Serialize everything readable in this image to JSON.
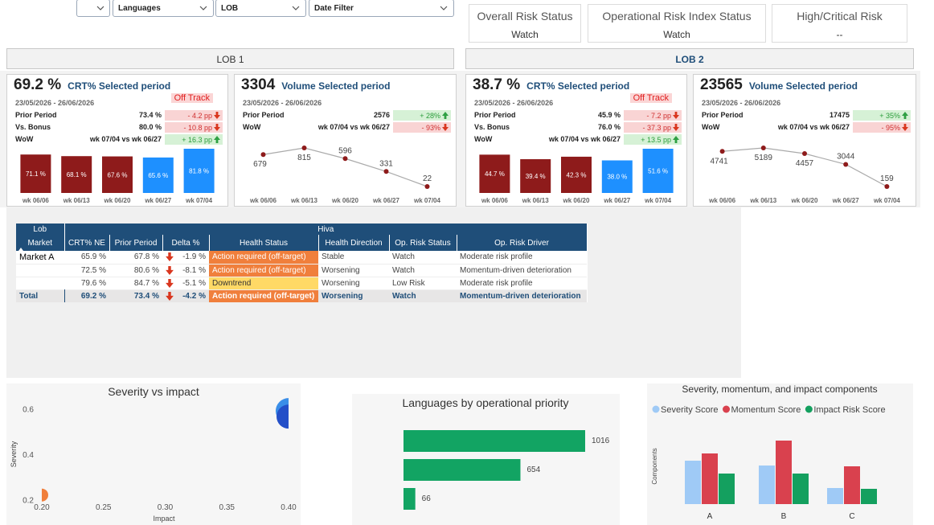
{
  "filters": [
    "Languages",
    "LOB",
    "Date Filter"
  ],
  "status_cards": [
    {
      "title": "Overall Risk Status",
      "value": "Watch"
    },
    {
      "title": "Operational Risk Index Status",
      "value": "Watch"
    },
    {
      "title": "High/Critical Risk",
      "value": "--"
    }
  ],
  "lob_headers": [
    "LOB 1",
    "LOB 2"
  ],
  "kpi_cards": [
    {
      "value": "69.2 %",
      "label": "CRT% Selected period",
      "date_range": "23/05/2026 - 26/06/2026",
      "status": "Off Track",
      "rows": [
        {
          "label": "Prior Period",
          "value": "73.4 %",
          "delta": "- 4.2 pp",
          "trend": "down"
        },
        {
          "label": "Vs. Bonus",
          "value": "80.0 %",
          "delta": "- 10.8 pp",
          "trend": "down"
        },
        {
          "label": "WoW",
          "value": "wk 07/04 vs wk 06/27",
          "delta": "+ 16.3 pp",
          "trend": "up"
        }
      ]
    },
    {
      "value": "3304",
      "label": "Volume Selected period",
      "date_range": "23/05/2026 - 26/06/2026",
      "rows": [
        {
          "label": "Prior Period",
          "value": "2576",
          "delta": "+ 28%",
          "trend": "up"
        },
        {
          "label": "WoW",
          "value": "wk 07/04 vs wk 06/27",
          "delta": "- 93%",
          "trend": "down"
        }
      ]
    },
    {
      "value": "38.7 %",
      "label": "CRT% Selected period",
      "date_range": "23/05/2026 - 26/06/2026",
      "status": "Off Track",
      "rows": [
        {
          "label": "Prior Period",
          "value": "45.9 %",
          "delta": "- 7.2 pp",
          "trend": "down"
        },
        {
          "label": "Vs. Bonus",
          "value": "76.0 %",
          "delta": "- 37.3 pp",
          "trend": "down"
        },
        {
          "label": "WoW",
          "value": "wk 07/04 vs wk 06/27",
          "delta": "+ 13.5 pp",
          "trend": "up"
        }
      ]
    },
    {
      "value": "23565",
      "label": "Volume Selected period",
      "date_range": "23/05/2026 - 26/06/2026",
      "rows": [
        {
          "label": "Prior Period",
          "value": "17475",
          "delta": "+ 35%",
          "trend": "up"
        },
        {
          "label": "WoW",
          "value": "wk 07/04 vs wk 06/27",
          "delta": "- 95%",
          "trend": "down"
        }
      ]
    }
  ],
  "table": {
    "group_headers": [
      "Lob",
      "Hiva"
    ],
    "columns": [
      "Market",
      "CRT% NE",
      "Prior Period",
      "Delta %",
      "Health Status",
      "Health Direction",
      "Op. Risk Status",
      "Op. Risk Driver"
    ],
    "rows": [
      [
        "Market A",
        "65.9 %",
        "67.8 %",
        "-1.9 %",
        "Action required (off-target)",
        "Stable",
        "Watch",
        "Moderate risk profile"
      ],
      [
        null,
        "72.5 %",
        "80.6 %",
        "-8.1 %",
        "Action required (off-target)",
        "Worsening",
        "Watch",
        "Momentum-driven deterioration"
      ],
      [
        null,
        "79.6 %",
        "84.7 %",
        "-5.1 %",
        "Downtrend",
        "Worsening",
        "Low Risk",
        "Moderate risk profile"
      ]
    ],
    "health_colors": [
      "#f07f3c",
      "#f07f3c",
      "#ffd966"
    ],
    "total": [
      "Total",
      "69.2 %",
      "73.4 %",
      "-4.2 %",
      "Action required (off-target)",
      "Worsening",
      "Watch",
      "Momentum-driven deterioration"
    ],
    "total_health_color": "#f07f3c"
  },
  "chart_data": [
    {
      "type": "bar",
      "categories": [
        "wk 06/06",
        "wk 06/13",
        "wk 06/20",
        "wk 06/27",
        "wk 07/04"
      ],
      "values": [
        71.1,
        68.1,
        67.6,
        65.6,
        81.8
      ],
      "value_labels": [
        "71.1 %",
        "68.1 %",
        "67.6 %",
        "65.6 %",
        "81.8 %"
      ],
      "colors": [
        "#8e1b1b",
        "#8e1b1b",
        "#8e1b1b",
        "#1e90ff",
        "#1e90ff"
      ]
    },
    {
      "type": "line",
      "categories": [
        "wk 06/06",
        "wk 06/13",
        "wk 06/20",
        "wk 06/27",
        "wk 07/04"
      ],
      "values": [
        679,
        815,
        596,
        331,
        22
      ],
      "color": "#8e1b1b"
    },
    {
      "type": "bar",
      "categories": [
        "wk 06/06",
        "wk 06/13",
        "wk 06/20",
        "wk 06/27",
        "wk 07/04"
      ],
      "values": [
        44.7,
        39.4,
        42.3,
        38.0,
        51.6
      ],
      "value_labels": [
        "44.7 %",
        "39.4 %",
        "42.3 %",
        "38.0 %",
        "51.6 %"
      ],
      "colors": [
        "#8e1b1b",
        "#8e1b1b",
        "#8e1b1b",
        "#1e90ff",
        "#1e90ff"
      ]
    },
    {
      "type": "line",
      "categories": [
        "wk 06/06",
        "wk 06/13",
        "wk 06/20",
        "wk 06/27",
        "wk 07/04"
      ],
      "values": [
        4741,
        5189,
        4457,
        3044,
        159
      ],
      "color": "#8e1b1b"
    },
    {
      "type": "bubble",
      "title": "Severity vs impact",
      "x_label": "Impact",
      "y_label": "Severity",
      "x": [
        0.2,
        0.4,
        0.4
      ],
      "values": [
        0.22,
        0.59,
        0.565
      ],
      "sizes": [
        1,
        4,
        3.5
      ],
      "colors": [
        "#f07f3c",
        "#3a8ee8",
        "#2450c8"
      ],
      "xlim": [
        0.2,
        0.4
      ],
      "xticks": [
        {
          "value": 0.2,
          "label": "0.20"
        },
        {
          "value": 0.25,
          "label": "0.25"
        },
        {
          "value": 0.3,
          "label": "0.30"
        },
        {
          "value": 0.35,
          "label": "0.35"
        },
        {
          "value": 0.4,
          "label": "0.40"
        }
      ],
      "ylim": [
        0.18,
        0.64
      ],
      "yticks": [
        0.2,
        0.4,
        0.6
      ]
    },
    {
      "type": "hbar",
      "title": "Languages by operational priority",
      "categories": [
        null,
        null,
        null
      ],
      "values": [
        1016,
        654,
        66
      ],
      "color": "#12a463"
    },
    {
      "type": "grouped_bar",
      "title": "Severity, momentum, and impact components",
      "y_label": "Components",
      "categories": [
        "A",
        "B",
        "C"
      ],
      "ylim": [
        0,
        1
      ],
      "legend": "top",
      "series": [
        {
          "name": "Severity Score",
          "color": "#9fcaf6",
          "values": [
            0.54,
            0.48,
            0.2
          ]
        },
        {
          "name": "Momentum Score",
          "color": "#d9414e",
          "values": [
            0.63,
            0.79,
            0.47
          ]
        },
        {
          "name": "Impact Risk Score",
          "color": "#14a05f",
          "values": [
            0.38,
            0.38,
            0.19
          ]
        }
      ]
    }
  ]
}
